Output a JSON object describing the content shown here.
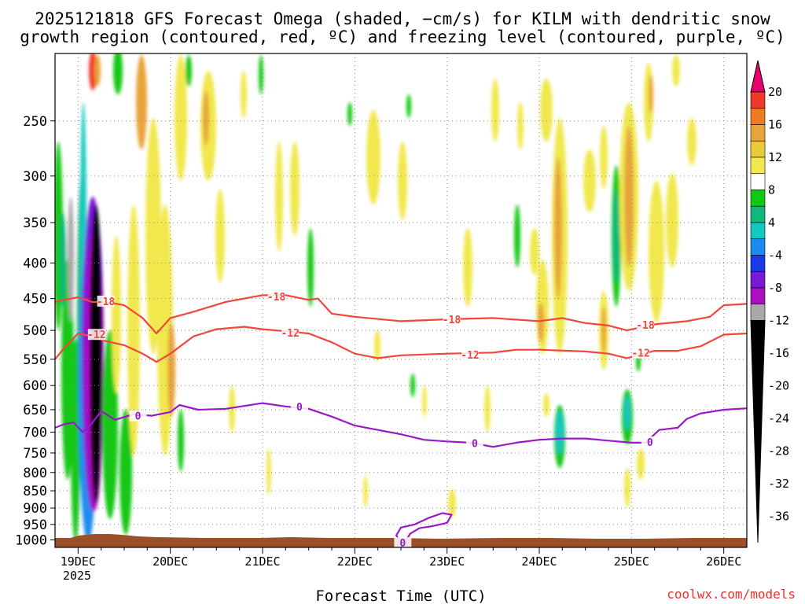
{
  "chart_data": {
    "type": "heatmap",
    "title_line1": "2025121818 GFS Forecast Omega (shaded, −cm/s) for KILM with dendritic snow",
    "title_line2": "growth region (contoured, red, ºC) and freezing level (contoured, purple, ºC)",
    "xlabel": "Forecast Time (UTC)",
    "credit": "coolwx.com/models",
    "x_ticks": [
      "19DEC",
      "20DEC",
      "21DEC",
      "22DEC",
      "23DEC",
      "24DEC",
      "25DEC",
      "26DEC"
    ],
    "x_year_label": "2025",
    "x_range_days": [
      18.75,
      26.25
    ],
    "y_ticks": [
      250,
      300,
      350,
      400,
      450,
      500,
      550,
      600,
      650,
      700,
      750,
      800,
      850,
      900,
      950,
      1000
    ],
    "y_range_hpa": [
      200,
      1025
    ],
    "colorbar": {
      "labels": [
        "20",
        "16",
        "12",
        "8",
        "4",
        "-4",
        "-8",
        "-12",
        "-16",
        "-20",
        "-24",
        "-28",
        "-32",
        "-36"
      ],
      "colors": [
        "#e8006e",
        "#ee3a2a",
        "#f07a24",
        "#e8a33a",
        "#e9cb3a",
        "#f0e84e",
        "#ffffff",
        "#12c812",
        "#10b87a",
        "#12c8c0",
        "#1a8cf0",
        "#1a3ae6",
        "#7a18d8",
        "#aa10c0",
        "#a8a8a8",
        "#000000"
      ]
    },
    "contours": [
      {
        "name": "-18",
        "color": "#f0463c",
        "points": [
          [
            18.75,
            455
          ],
          [
            18.85,
            452
          ],
          [
            19.0,
            448
          ],
          [
            19.15,
            455
          ],
          [
            19.3,
            455
          ],
          [
            19.5,
            460
          ],
          [
            19.7,
            480
          ],
          [
            19.85,
            505
          ],
          [
            20.0,
            480
          ],
          [
            20.25,
            470
          ],
          [
            20.6,
            455
          ],
          [
            21.0,
            445
          ],
          [
            21.25,
            445
          ],
          [
            21.5,
            452
          ],
          [
            21.6,
            450
          ],
          [
            21.75,
            473
          ],
          [
            22.0,
            478
          ],
          [
            22.5,
            485
          ],
          [
            23.0,
            482
          ],
          [
            23.5,
            480
          ],
          [
            24.0,
            485
          ],
          [
            24.25,
            480
          ],
          [
            24.5,
            488
          ],
          [
            24.75,
            492
          ],
          [
            24.95,
            500
          ],
          [
            25.25,
            490
          ],
          [
            25.6,
            485
          ],
          [
            25.85,
            478
          ],
          [
            26.0,
            460
          ],
          [
            26.25,
            458
          ]
        ],
        "labels": [
          [
            19.3,
            455
          ],
          [
            21.15,
            448
          ],
          [
            23.05,
            483
          ],
          [
            25.15,
            492
          ]
        ]
      },
      {
        "name": "-12",
        "color": "#f0463c",
        "points": [
          [
            18.75,
            550
          ],
          [
            18.85,
            530
          ],
          [
            19.0,
            505
          ],
          [
            19.15,
            510
          ],
          [
            19.3,
            518
          ],
          [
            19.5,
            525
          ],
          [
            19.7,
            540
          ],
          [
            19.85,
            555
          ],
          [
            20.0,
            540
          ],
          [
            20.25,
            510
          ],
          [
            20.5,
            498
          ],
          [
            20.8,
            494
          ],
          [
            21.0,
            498
          ],
          [
            21.3,
            502
          ],
          [
            21.5,
            505
          ],
          [
            21.75,
            520
          ],
          [
            22.0,
            540
          ],
          [
            22.25,
            548
          ],
          [
            22.5,
            543
          ],
          [
            23.0,
            540
          ],
          [
            23.5,
            538
          ],
          [
            23.75,
            533
          ],
          [
            24.0,
            533
          ],
          [
            24.5,
            536
          ],
          [
            24.75,
            540
          ],
          [
            24.95,
            548
          ],
          [
            25.25,
            535
          ],
          [
            25.5,
            535
          ],
          [
            25.75,
            527
          ],
          [
            26.0,
            507
          ],
          [
            26.25,
            505
          ]
        ],
        "labels": [
          [
            19.2,
            508
          ],
          [
            21.3,
            505
          ],
          [
            23.25,
            543
          ],
          [
            25.1,
            540
          ]
        ]
      },
      {
        "name": "0",
        "color": "#9a18c8",
        "points": [
          [
            18.75,
            690
          ],
          [
            18.85,
            682
          ],
          [
            18.95,
            678
          ],
          [
            19.05,
            700
          ],
          [
            19.15,
            680
          ],
          [
            19.25,
            653
          ],
          [
            19.4,
            672
          ],
          [
            19.6,
            660
          ],
          [
            19.8,
            663
          ],
          [
            20.0,
            655
          ],
          [
            20.1,
            640
          ],
          [
            20.3,
            650
          ],
          [
            20.6,
            648
          ],
          [
            21.0,
            636
          ],
          [
            21.25,
            643
          ],
          [
            21.5,
            648
          ],
          [
            21.75,
            665
          ],
          [
            22.0,
            685
          ],
          [
            22.25,
            695
          ],
          [
            22.5,
            705
          ],
          [
            22.75,
            718
          ],
          [
            23.0,
            722
          ],
          [
            23.25,
            725
          ],
          [
            23.5,
            735
          ],
          [
            23.75,
            725
          ],
          [
            24.0,
            718
          ],
          [
            24.25,
            715
          ],
          [
            24.5,
            715
          ],
          [
            24.75,
            720
          ],
          [
            25.0,
            725
          ],
          [
            25.15,
            725
          ],
          [
            25.3,
            695
          ],
          [
            25.5,
            690
          ],
          [
            25.6,
            670
          ],
          [
            25.75,
            658
          ],
          [
            26.0,
            650
          ],
          [
            26.25,
            647
          ]
        ],
        "labels": [
          [
            19.65,
            665
          ],
          [
            21.4,
            645
          ],
          [
            23.3,
            728
          ],
          [
            25.2,
            725
          ]
        ]
      },
      {
        "name": "0",
        "color": "#9a18c8",
        "points": [
          [
            22.5,
            1010
          ],
          [
            22.45,
            985
          ],
          [
            22.5,
            960
          ],
          [
            22.65,
            950
          ],
          [
            22.8,
            930
          ],
          [
            22.95,
            915
          ],
          [
            23.05,
            920
          ],
          [
            23.0,
            945
          ],
          [
            22.85,
            955
          ],
          [
            22.7,
            962
          ],
          [
            22.6,
            980
          ],
          [
            22.55,
            1005
          ]
        ],
        "labels": [
          [
            22.52,
            1012
          ]
        ]
      }
    ]
  }
}
